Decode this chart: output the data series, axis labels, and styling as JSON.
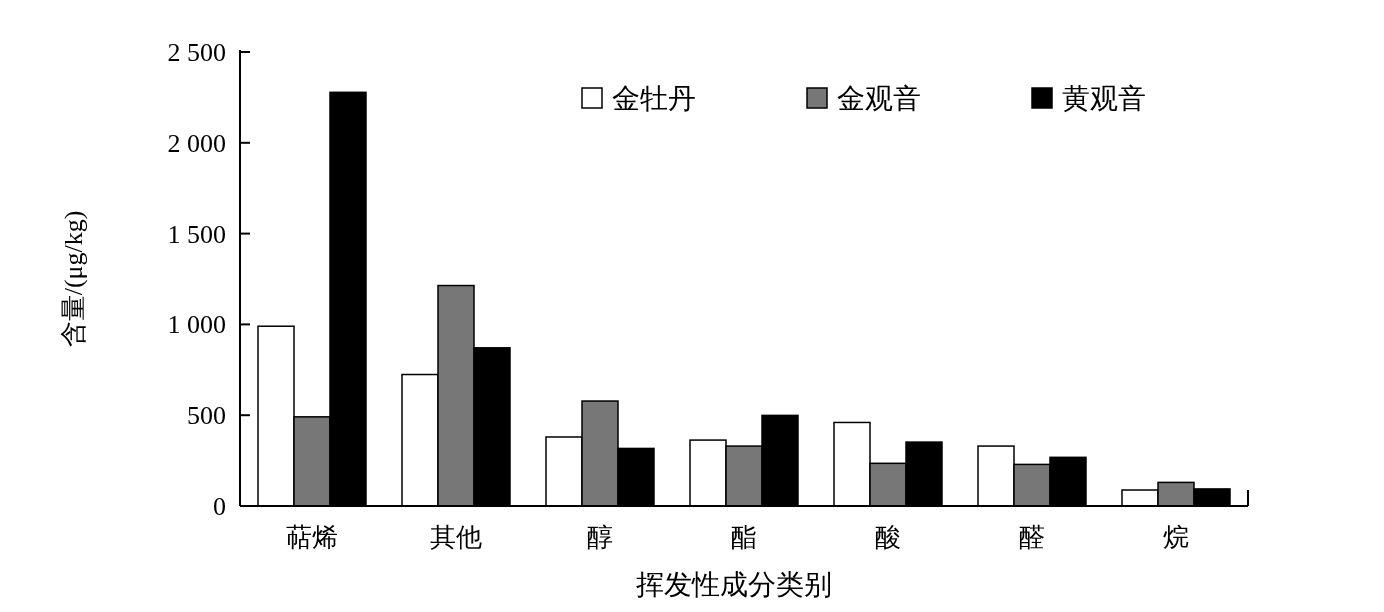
{
  "chart_data": {
    "type": "bar",
    "xlabel": "挥发性成分类别",
    "ylabel": "含量/(μg/kg)",
    "categories": [
      "萜烯",
      "其他",
      "醇",
      "酯",
      "酸",
      "醛",
      "烷"
    ],
    "series": [
      {
        "name": "金牡丹",
        "color": "#ffffff",
        "values": [
          990,
          724,
          380,
          363,
          460,
          330,
          88
        ]
      },
      {
        "name": "金观音",
        "color": "#777777",
        "values": [
          491,
          1214,
          578,
          330,
          235,
          229,
          130
        ]
      },
      {
        "name": "黄观音",
        "color": "#000000",
        "values": [
          2278,
          871,
          317,
          499,
          352,
          268,
          94
        ]
      }
    ],
    "ylim": [
      0,
      2500
    ],
    "yticks": [
      0,
      500,
      {
        "value": 1000,
        "label": "1 000"
      },
      {
        "value": 1500,
        "label": "1 500"
      },
      {
        "value": 2000,
        "label": "2 000"
      },
      {
        "value": 2500,
        "label": "2 500"
      }
    ],
    "legend": "top right",
    "grid": false
  }
}
